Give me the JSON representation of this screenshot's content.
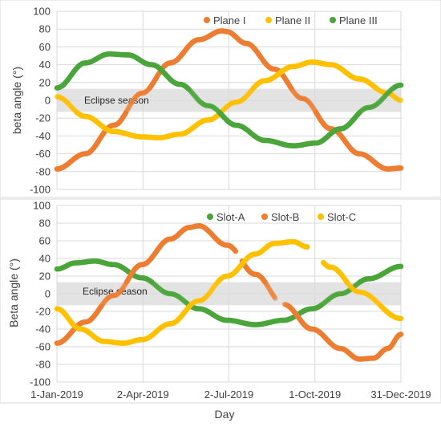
{
  "colors": {
    "orange": "#ED7D31",
    "yellow": "#FFC000",
    "green": "#4AA53A",
    "eclipse_band": "#D9D9D9",
    "gridline": "#D9D9D9"
  },
  "x_axis": {
    "title": "Day",
    "tick_labels": [
      "1-Jan-2019",
      "2-Apr-2019",
      "2-Jul-2019",
      "1-Oct-2019",
      "31-Dec-2019"
    ],
    "tick_days": [
      0,
      91,
      182,
      273,
      364
    ],
    "range_days": [
      0,
      364
    ]
  },
  "chart_data": [
    {
      "type": "scatter",
      "ylabel": "beta angle (°)",
      "ylim": [
        -100,
        100
      ],
      "ytick_step": 20,
      "yticks": [
        "100",
        "80",
        "60",
        "40",
        "20",
        "0",
        "-20",
        "-40",
        "-60",
        "-80",
        "-100"
      ],
      "legend_placement": "top-right",
      "eclipse_band": {
        "label": "Eclipse season",
        "range": [
          -13,
          13
        ]
      },
      "series": [
        {
          "name": "Plane I",
          "color_key": "orange",
          "x": [
            0,
            30,
            60,
            90,
            120,
            150,
            175,
            180,
            200,
            230,
            260,
            290,
            320,
            350,
            364
          ],
          "y": [
            -77,
            -60,
            -28,
            8,
            42,
            68,
            78,
            77,
            64,
            35,
            2,
            -32,
            -60,
            -77,
            -76
          ]
        },
        {
          "name": "Plane II",
          "color_key": "yellow",
          "x": [
            0,
            30,
            60,
            90,
            108,
            130,
            160,
            190,
            220,
            250,
            270,
            290,
            320,
            350,
            364
          ],
          "y": [
            4,
            -18,
            -35,
            -41,
            -42,
            -38,
            -22,
            -2,
            22,
            38,
            43,
            40,
            24,
            8,
            0
          ]
        },
        {
          "name": "Plane III",
          "color_key": "green",
          "x": [
            0,
            30,
            55,
            75,
            100,
            130,
            160,
            190,
            220,
            250,
            274,
            300,
            330,
            364
          ],
          "y": [
            14,
            42,
            52,
            51,
            40,
            18,
            -6,
            -28,
            -45,
            -51,
            -48,
            -32,
            -8,
            17
          ]
        }
      ]
    },
    {
      "type": "scatter",
      "ylabel": "Beta angle (°)",
      "ylim": [
        -100,
        100
      ],
      "ytick_step": 20,
      "yticks": [
        "100",
        "80",
        "60",
        "40",
        "20",
        "0",
        "-20",
        "-40",
        "-60",
        "-80",
        "-100"
      ],
      "legend_placement": "top-right",
      "eclipse_band": {
        "label": "Eclipse season",
        "range": [
          -13,
          13
        ]
      },
      "series": [
        {
          "name": "Slot-A",
          "color_key": "green",
          "x": [
            0,
            20,
            40,
            60,
            90,
            120,
            150,
            180,
            210,
            240,
            270,
            300,
            330,
            364
          ],
          "y": [
            28,
            35,
            37,
            33,
            18,
            0,
            -17,
            -30,
            -35,
            -30,
            -17,
            0,
            17,
            31
          ]
        },
        {
          "name": "Slot-B",
          "color_key": "orange",
          "x": [
            0,
            30,
            60,
            90,
            120,
            140,
            150,
            180,
            210,
            240,
            270,
            300,
            320,
            335,
            350,
            364
          ],
          "y": [
            -56,
            -32,
            -2,
            33,
            62,
            75,
            77,
            55,
            22,
            -12,
            -40,
            -62,
            -74,
            -73,
            -62,
            -46
          ],
          "gaps": [
            [
              190,
              195
            ],
            [
              232,
              240
            ]
          ]
        },
        {
          "name": "Slot-C",
          "color_key": "yellow",
          "x": [
            0,
            25,
            50,
            70,
            90,
            120,
            150,
            180,
            210,
            230,
            250,
            265,
            290,
            320,
            364
          ],
          "y": [
            -17,
            -40,
            -54,
            -56,
            -52,
            -34,
            -8,
            20,
            45,
            57,
            59,
            53,
            30,
            2,
            -28
          ],
          "gaps": [
            [
              266,
              281
            ]
          ]
        }
      ]
    }
  ]
}
